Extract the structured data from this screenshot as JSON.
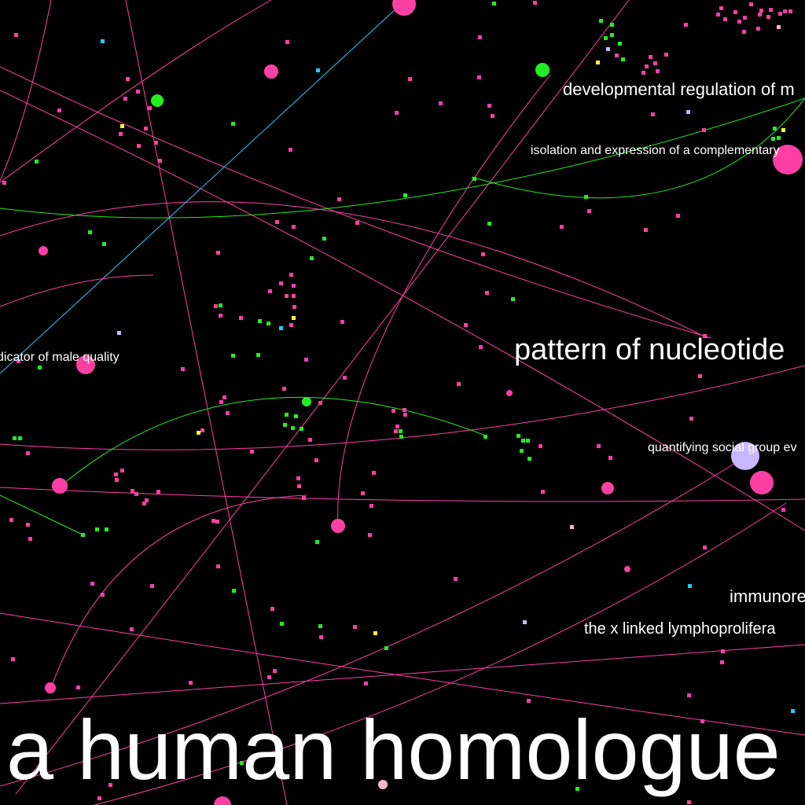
{
  "labels": {
    "developmental": "developmental regulation of m",
    "isolation": "isolation and expression of a complementary",
    "indicator": "dicator of male quality",
    "pattern": "pattern of nucleotide",
    "quantifying": "quantifying social group ev",
    "immunore": "immunore",
    "xlinked": "the x linked lymphoprolifera",
    "human": "a human homologue"
  },
  "colors": {
    "background": "#000000",
    "pink": "#ff3fa4",
    "green": "#22ee22",
    "cyan": "#22ccff",
    "lavender": "#c8b8ff",
    "yellow": "#ffff33",
    "light_pink": "#ffb6c8",
    "label": "#ffffff"
  }
}
